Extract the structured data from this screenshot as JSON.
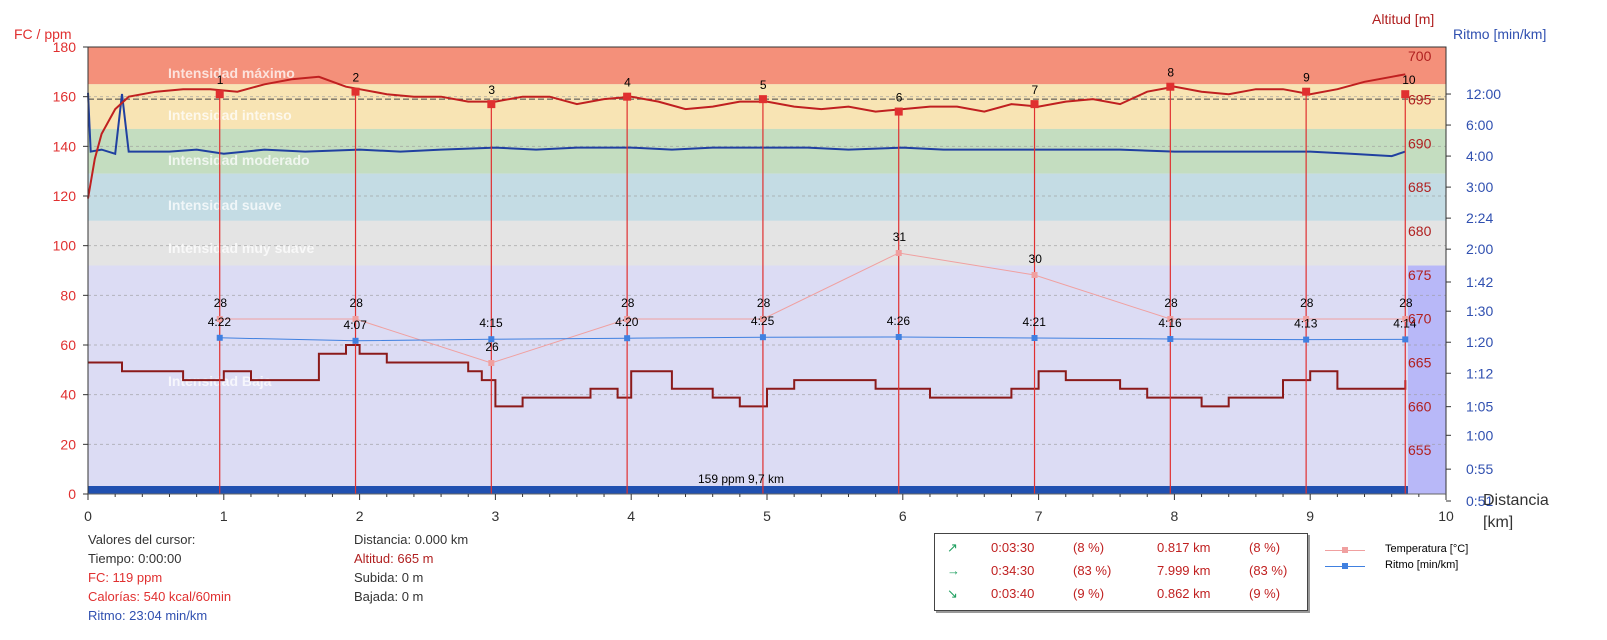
{
  "axes": {
    "left_title": "FC / ppm",
    "right_alt_title": "Altitud [m]",
    "right_pace_title": "Ritmo [min/km]",
    "x_title_line1": "Distancia",
    "x_title_line2": "[km]",
    "hr_ticks": [
      "0",
      "20",
      "40",
      "60",
      "80",
      "100",
      "120",
      "140",
      "160",
      "180"
    ],
    "alt_ticks": [
      "655",
      "660",
      "665",
      "670",
      "675",
      "680",
      "685",
      "690",
      "695",
      "700"
    ],
    "pace_ticks": [
      "0:51",
      "0:55",
      "1:00",
      "1:05",
      "1:12",
      "1:20",
      "1:30",
      "1:42",
      "2:00",
      "2:24",
      "3:00",
      "4:00",
      "6:00",
      "12:00"
    ],
    "x_ticks": [
      "0",
      "1",
      "2",
      "3",
      "4",
      "5",
      "6",
      "7",
      "8",
      "9",
      "10"
    ]
  },
  "zones": [
    {
      "name": "Intensidad máximo",
      "from": 165,
      "to": 180,
      "color": "#f4907a"
    },
    {
      "name": "Intensidad intenso",
      "from": 147,
      "to": 165,
      "color": "#f8e4b4"
    },
    {
      "name": "Intensidad moderado",
      "from": 129,
      "to": 147,
      "color": "#c4ddc0"
    },
    {
      "name": "Intensidad suave",
      "from": 110,
      "to": 129,
      "color": "#c4dce4"
    },
    {
      "name": "Intensidad muy suave",
      "from": 92,
      "to": 110,
      "color": "#e4e4e4"
    },
    {
      "name": "Intensidad Baja",
      "from": 0,
      "to": 92,
      "color": "#dcdcf4"
    }
  ],
  "zone_labels": [
    "Intensidad máximo",
    "Intensidad intenso",
    "Intensidad moderado",
    "Intensidad suave",
    "Intensidad muy suave",
    "Intensidad Baja"
  ],
  "cursor_text": "159 ppm 9,7 km",
  "cursor_info": {
    "title": "Valores del cursor:",
    "tiempo": "Tiempo: 0:00:00",
    "fc": "FC: 119 ppm",
    "calorias": "Calorías: 540 kcal/60min",
    "ritmo": "Ritmo: 23:04 min/km",
    "distancia": "Distancia: 0.000 km",
    "altitud": "Altitud: 665 m",
    "subida": "Subida: 0 m",
    "bajada": "Bajada: 0 m"
  },
  "stats": [
    {
      "arrow": "↗",
      "time": "0:03:30",
      "time_pct": "(8 %)",
      "dist": "0.817 km",
      "dist_pct": "(8 %)"
    },
    {
      "arrow": "→",
      "time": "0:34:30",
      "time_pct": "(83 %)",
      "dist": "7.999 km",
      "dist_pct": "(83 %)"
    },
    {
      "arrow": "↘",
      "time": "0:03:40",
      "time_pct": "(9 %)",
      "dist": "0.862 km",
      "dist_pct": "(9 %)"
    }
  ],
  "legend": [
    {
      "label": "Temperatura [°C]",
      "color": "#f0a0a0"
    },
    {
      "label": "Ritmo [min/km]",
      "color": "#4080e0"
    }
  ],
  "colors": {
    "hr": "#c02020",
    "altitude": "#8b1a1a",
    "pace_line": "#2040a0",
    "pace_marker": "#4080e0",
    "temp": "#f0a0a0",
    "lap_line": "#e03030",
    "bottom_bar": "#2050b0",
    "zone_label": "#ffffff"
  },
  "chart_data": {
    "type": "line",
    "xlim": [
      0,
      10
    ],
    "hr_ylim": [
      0,
      180
    ],
    "alt_ylim": [
      650,
      701
    ],
    "laps": [
      {
        "lap": "1",
        "x": 0.97,
        "hr": 161,
        "temp": 28,
        "pace": "4:22"
      },
      {
        "lap": "2",
        "x": 1.97,
        "hr": 162,
        "temp": 28,
        "pace": "4:07"
      },
      {
        "lap": "3",
        "x": 2.97,
        "hr": 157,
        "temp": 26,
        "pace": "4:15"
      },
      {
        "lap": "4",
        "x": 3.97,
        "hr": 160,
        "temp": 28,
        "pace": "4:20"
      },
      {
        "lap": "5",
        "x": 4.97,
        "hr": 159,
        "temp": 28,
        "pace": "4:25"
      },
      {
        "lap": "6",
        "x": 5.97,
        "hr": 154,
        "temp": 31,
        "pace": "4:26"
      },
      {
        "lap": "7",
        "x": 6.97,
        "hr": 157,
        "temp": 30,
        "pace": "4:21"
      },
      {
        "lap": "8",
        "x": 7.97,
        "hr": 164,
        "temp": 28,
        "pace": "4:16"
      },
      {
        "lap": "9",
        "x": 8.97,
        "hr": 162,
        "temp": 28,
        "pace": "4:13"
      },
      {
        "lap": "10",
        "x": 9.7,
        "hr": 161,
        "temp": 28,
        "pace": "4:14"
      }
    ],
    "hr_series": [
      [
        0,
        119
      ],
      [
        0.05,
        135
      ],
      [
        0.1,
        145
      ],
      [
        0.2,
        155
      ],
      [
        0.3,
        160
      ],
      [
        0.5,
        162
      ],
      [
        0.7,
        163
      ],
      [
        0.9,
        163
      ],
      [
        1.1,
        162
      ],
      [
        1.3,
        165
      ],
      [
        1.5,
        167
      ],
      [
        1.7,
        168
      ],
      [
        1.9,
        164
      ],
      [
        2.0,
        163
      ],
      [
        2.2,
        161
      ],
      [
        2.4,
        160
      ],
      [
        2.6,
        160
      ],
      [
        2.8,
        158
      ],
      [
        3.0,
        158
      ],
      [
        3.2,
        160
      ],
      [
        3.4,
        160
      ],
      [
        3.6,
        157
      ],
      [
        3.8,
        159
      ],
      [
        4.0,
        160
      ],
      [
        4.2,
        158
      ],
      [
        4.4,
        155
      ],
      [
        4.6,
        156
      ],
      [
        4.8,
        158
      ],
      [
        5.0,
        158
      ],
      [
        5.2,
        156
      ],
      [
        5.4,
        155
      ],
      [
        5.6,
        156
      ],
      [
        5.8,
        154
      ],
      [
        6.0,
        155
      ],
      [
        6.2,
        156
      ],
      [
        6.4,
        156
      ],
      [
        6.6,
        154
      ],
      [
        6.8,
        157
      ],
      [
        7.0,
        156
      ],
      [
        7.2,
        158
      ],
      [
        7.4,
        159
      ],
      [
        7.6,
        157
      ],
      [
        7.8,
        162
      ],
      [
        8.0,
        164
      ],
      [
        8.2,
        162
      ],
      [
        8.4,
        161
      ],
      [
        8.6,
        163
      ],
      [
        8.8,
        163
      ],
      [
        9.0,
        161
      ],
      [
        9.2,
        163
      ],
      [
        9.4,
        166
      ],
      [
        9.6,
        168
      ],
      [
        9.7,
        169
      ]
    ],
    "alt_series": [
      [
        0,
        665
      ],
      [
        0.2,
        665
      ],
      [
        0.25,
        664
      ],
      [
        0.6,
        664
      ],
      [
        0.7,
        663
      ],
      [
        1.0,
        664
      ],
      [
        1.2,
        663
      ],
      [
        1.6,
        663
      ],
      [
        1.7,
        666
      ],
      [
        1.9,
        667
      ],
      [
        2.0,
        666
      ],
      [
        2.2,
        665
      ],
      [
        2.6,
        665
      ],
      [
        2.8,
        664
      ],
      [
        2.9,
        663
      ],
      [
        3.0,
        660
      ],
      [
        3.2,
        661
      ],
      [
        3.5,
        661
      ],
      [
        3.7,
        662
      ],
      [
        3.9,
        661
      ],
      [
        4.0,
        664
      ],
      [
        4.2,
        664
      ],
      [
        4.3,
        662
      ],
      [
        4.6,
        661
      ],
      [
        4.8,
        660
      ],
      [
        5.0,
        662
      ],
      [
        5.2,
        663
      ],
      [
        5.6,
        663
      ],
      [
        5.8,
        662
      ],
      [
        6.0,
        662
      ],
      [
        6.2,
        661
      ],
      [
        6.4,
        661
      ],
      [
        6.6,
        661
      ],
      [
        6.8,
        662
      ],
      [
        7.0,
        664
      ],
      [
        7.2,
        663
      ],
      [
        7.4,
        663
      ],
      [
        7.6,
        662
      ],
      [
        7.8,
        661
      ],
      [
        8.0,
        661
      ],
      [
        8.2,
        660
      ],
      [
        8.4,
        661
      ],
      [
        8.6,
        661
      ],
      [
        8.8,
        663
      ],
      [
        9.0,
        664
      ],
      [
        9.2,
        662
      ],
      [
        9.5,
        662
      ],
      [
        9.7,
        663
      ]
    ],
    "pace_series": [
      [
        0,
        12.5
      ],
      [
        0.02,
        4.2
      ],
      [
        0.1,
        4.3
      ],
      [
        0.2,
        4.1
      ],
      [
        0.25,
        12.0
      ],
      [
        0.3,
        4.2
      ],
      [
        0.6,
        4.2
      ],
      [
        0.8,
        4.3
      ],
      [
        1.0,
        4.1
      ],
      [
        1.3,
        4.3
      ],
      [
        1.6,
        4.2
      ],
      [
        2.0,
        4.3
      ],
      [
        2.3,
        4.2
      ],
      [
        2.6,
        4.3
      ],
      [
        3.0,
        4.4
      ],
      [
        3.3,
        4.3
      ],
      [
        3.6,
        4.4
      ],
      [
        4.0,
        4.4
      ],
      [
        4.3,
        4.3
      ],
      [
        4.6,
        4.4
      ],
      [
        5.0,
        4.4
      ],
      [
        5.3,
        4.4
      ],
      [
        5.6,
        4.3
      ],
      [
        6.0,
        4.4
      ],
      [
        6.3,
        4.3
      ],
      [
        6.6,
        4.3
      ],
      [
        7.0,
        4.3
      ],
      [
        7.3,
        4.3
      ],
      [
        7.6,
        4.3
      ],
      [
        8.0,
        4.2
      ],
      [
        8.3,
        4.2
      ],
      [
        8.6,
        4.2
      ],
      [
        9.0,
        4.2
      ],
      [
        9.3,
        4.1
      ],
      [
        9.6,
        4.0
      ],
      [
        9.7,
        4.2
      ]
    ]
  }
}
